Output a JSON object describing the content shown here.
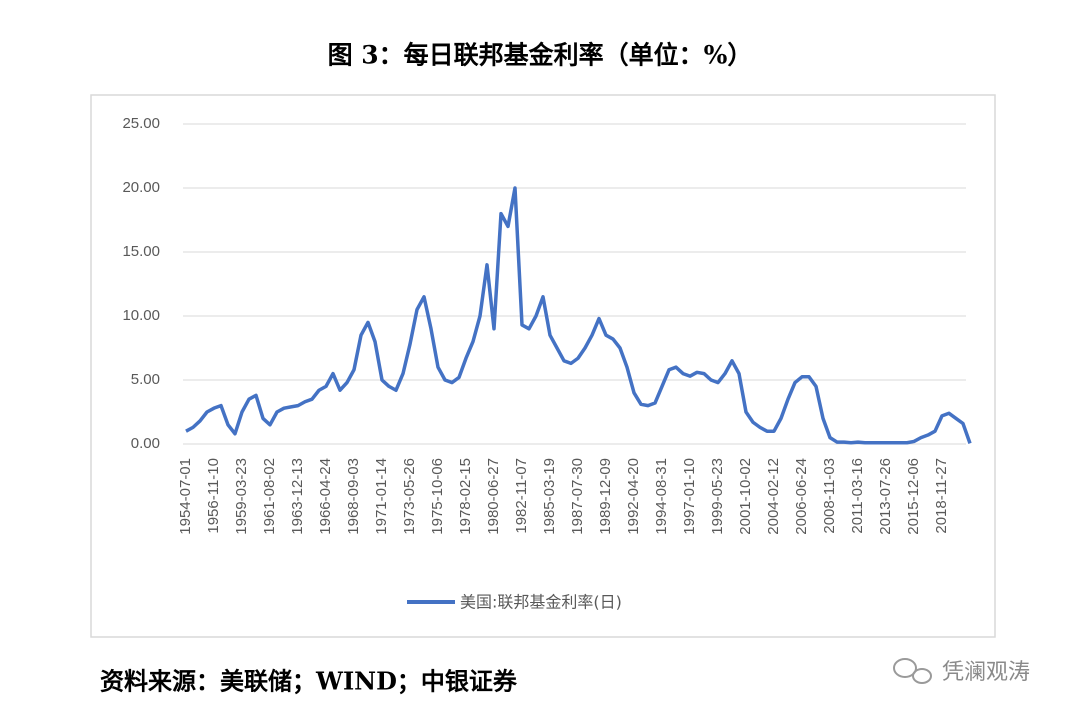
{
  "title": "图 3：每日联邦基金利率（单位：%）",
  "source": "资料来源：美联储；WIND；中银证券",
  "watermark": "凭澜观涛",
  "chart_data": {
    "type": "line",
    "categories": [
      "1954-07-01",
      null,
      null,
      null,
      "1956-11-10",
      null,
      null,
      null,
      "1959-03-23",
      null,
      null,
      null,
      "1961-08-02",
      null,
      null,
      null,
      "1963-12-13",
      null,
      null,
      null,
      "1966-04-24",
      null,
      null,
      null,
      "1968-09-03",
      null,
      null,
      null,
      "1971-01-14",
      null,
      null,
      null,
      "1973-05-26",
      null,
      null,
      null,
      "1975-10-06",
      null,
      null,
      null,
      "1978-02-15",
      null,
      null,
      null,
      "1980-06-27",
      null,
      null,
      null,
      "1982-11-07",
      null,
      null,
      null,
      "1985-03-19",
      null,
      null,
      null,
      "1987-07-30",
      null,
      null,
      null,
      "1989-12-09",
      null,
      null,
      null,
      "1992-04-20",
      null,
      null,
      null,
      "1994-08-31",
      null,
      null,
      null,
      "1997-01-10",
      null,
      null,
      null,
      "1999-05-23",
      null,
      null,
      null,
      "2001-10-02",
      null,
      null,
      null,
      "2004-02-12",
      null,
      null,
      null,
      "2006-06-24",
      null,
      null,
      null,
      "2008-11-03",
      null,
      null,
      null,
      "2011-03-16",
      null,
      null,
      null,
      "2013-07-26",
      null,
      null,
      null,
      "2015-12-06",
      null,
      null,
      null,
      "2018-11-27",
      null,
      null,
      null,
      null
    ],
    "series": [
      {
        "name": "美国:联邦基金利率(日)",
        "color": "#4472c4",
        "values": [
          1.0,
          1.3,
          1.8,
          2.5,
          2.8,
          3.0,
          1.5,
          0.8,
          2.5,
          3.5,
          3.8,
          2.0,
          1.5,
          2.5,
          2.8,
          2.9,
          3.0,
          3.3,
          3.5,
          4.2,
          4.5,
          5.5,
          4.2,
          4.8,
          5.8,
          8.5,
          9.5,
          8.0,
          5.0,
          4.5,
          4.2,
          5.5,
          7.8,
          10.5,
          11.5,
          9.0,
          6.0,
          5.0,
          4.8,
          5.2,
          6.7,
          8.0,
          10.0,
          14.0,
          9.0,
          18.0,
          17.0,
          20.0,
          9.3,
          9.0,
          10.0,
          11.5,
          8.5,
          7.5,
          6.5,
          6.3,
          6.7,
          7.5,
          8.5,
          9.8,
          8.5,
          8.2,
          7.5,
          6.0,
          4.0,
          3.1,
          3.0,
          3.2,
          4.5,
          5.8,
          6.0,
          5.5,
          5.3,
          5.6,
          5.5,
          5.0,
          4.8,
          5.5,
          6.5,
          5.5,
          2.5,
          1.7,
          1.3,
          1.0,
          1.0,
          2.0,
          3.5,
          4.8,
          5.25,
          5.25,
          4.5,
          2.0,
          0.5,
          0.15,
          0.15,
          0.1,
          0.15,
          0.1,
          0.1,
          0.1,
          0.1,
          0.1,
          0.1,
          0.1,
          0.2,
          0.5,
          0.7,
          1.0,
          2.2,
          2.4,
          2.0,
          1.6,
          0.05
        ]
      }
    ],
    "ylim": [
      0,
      25
    ],
    "yticks": [
      {
        "value": 0,
        "label": "0.00"
      },
      {
        "value": 5,
        "label": "5.00"
      },
      {
        "value": 10,
        "label": "10.00"
      },
      {
        "value": 15,
        "label": "15.00"
      },
      {
        "value": 20,
        "label": "20.00"
      },
      {
        "value": 25,
        "label": "25.00"
      }
    ],
    "grid": true
  }
}
